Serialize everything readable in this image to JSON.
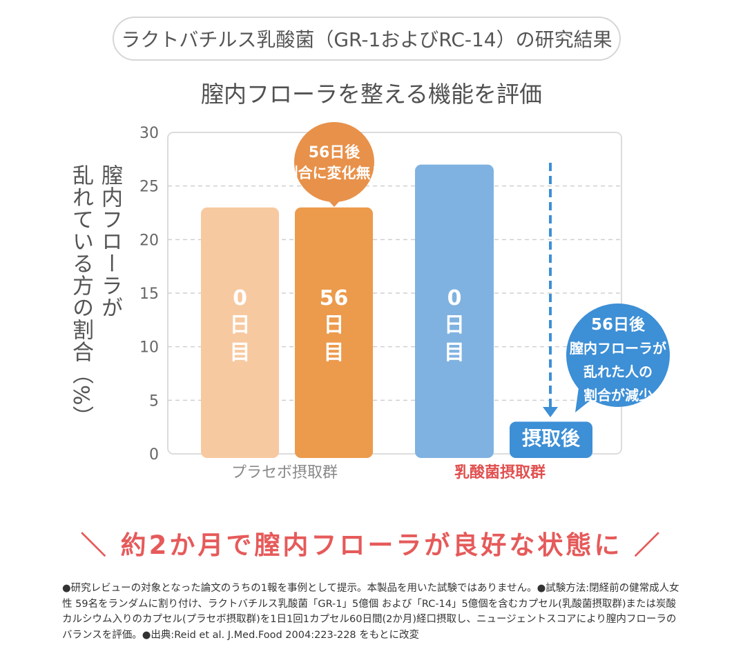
{
  "header": {
    "title": "ラクトバチルス乳酸菌（GR-1およびRC-14）の研究結果"
  },
  "subtitle": "膣内フローラを整える機能を評価",
  "y_axis_label": {
    "line1": "膣内フローラが",
    "line2": "乱れている方の割合（%）"
  },
  "chart_data": {
    "type": "bar",
    "ylim": [
      0,
      30
    ],
    "yticks": [
      0,
      5,
      10,
      15,
      20,
      25,
      30
    ],
    "grid": true,
    "groups": [
      {
        "name": "プラセボ摂取群",
        "color": "#888888"
      },
      {
        "name": "乳酸菌摂取群",
        "color": "#e0504f"
      }
    ],
    "bars": [
      {
        "group": "プラセボ摂取群",
        "label": "0日目",
        "value": 23,
        "color": "#f7c9a0"
      },
      {
        "group": "プラセボ摂取群",
        "label": "56日目",
        "value": 23,
        "color": "#ec9a4c"
      },
      {
        "group": "乳酸菌摂取群",
        "label": "0日目",
        "value": 27,
        "color": "#7fb2e0"
      },
      {
        "group": "乳酸菌摂取群",
        "label": "摂取後",
        "value": 3,
        "color": "#3d8fd6"
      }
    ],
    "bar_text": [
      {
        "lines": [
          "0",
          "日",
          "目"
        ]
      },
      {
        "lines": [
          "56",
          "日",
          "目"
        ]
      },
      {
        "lines": [
          "0",
          "日",
          "目"
        ]
      },
      {
        "lines": [
          "摂取後"
        ]
      }
    ],
    "callouts": [
      {
        "lines": [
          "56日後",
          "割合に変化無し"
        ],
        "color": "#e8914a"
      },
      {
        "lines": [
          "56日後",
          "膣内フローラが",
          "乱れた人の",
          "割合が減少"
        ],
        "color": "#3d8fd6"
      }
    ],
    "arrow_color": "#3d8fd6"
  },
  "tagline": "＼ 約2か月で膣内フローラが良好な状態に ／",
  "footnote": "●研究レビューの対象となった論文のうちの1報を事例として提示。本製品を用いた試験ではありません。●試験方法:閉経前の健常成人女性 59名をランダムに割り付け、ラクトバチルス乳酸菌「GR-1」5億個 および「RC-14」5億個を含むカプセル(乳酸菌摂取群)または炭酸カルシウム入りのカプセル(プラセボ摂取群)を1日1回1カプセル60日間(2か月)経口摂取し、ニュージェントスコアにより膣内フローラのバランスを評価。●出典:Reid et al. J.Med.Food 2004:223-228 をもとに改変"
}
